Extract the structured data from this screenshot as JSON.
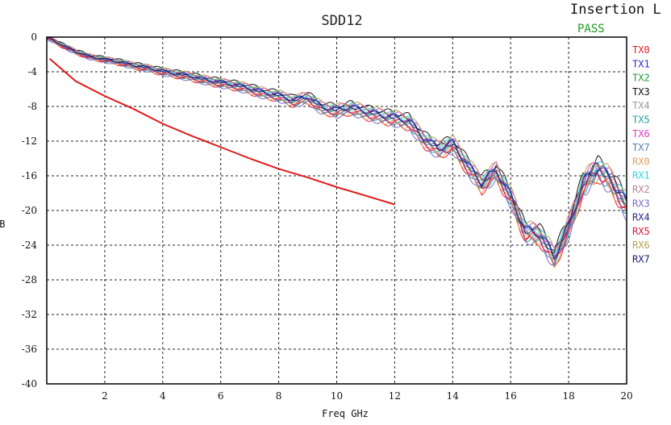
{
  "chart_data": {
    "type": "line",
    "title": "SDD12",
    "banner": "Insertion L",
    "status": "PASS",
    "xlabel": "Freq GHz",
    "ylabel": "dB",
    "xlim": [
      0,
      20
    ],
    "ylim": [
      -40,
      0
    ],
    "xticks": [
      2,
      4,
      6,
      8,
      10,
      12,
      14,
      16,
      18,
      20
    ],
    "yticks": [
      0,
      -4,
      -8,
      -12,
      -16,
      -20,
      -24,
      -28,
      -32,
      -36,
      -40
    ],
    "grid": true,
    "legend_position": "right",
    "limit_line": {
      "color": "#e01b1b",
      "x": [
        0.1,
        1,
        2,
        3,
        4,
        5,
        6,
        7,
        8,
        9,
        10,
        11,
        12
      ],
      "y": [
        -2.5,
        -5.1,
        -6.8,
        -8.3,
        -10.0,
        -11.4,
        -12.7,
        -14.0,
        -15.2,
        -16.2,
        -17.3,
        -18.3,
        -19.3
      ]
    },
    "series_base": {
      "x": [
        0,
        0.5,
        1,
        1.5,
        2,
        2.5,
        3,
        3.5,
        4,
        4.5,
        5,
        5.5,
        6,
        6.5,
        7,
        7.5,
        8,
        8.5,
        9,
        9.5,
        10,
        10.5,
        11,
        11.5,
        12,
        12.5,
        13,
        13.5,
        14,
        14.5,
        15,
        15.5,
        16,
        16.5,
        17,
        17.5,
        18,
        18.5,
        19,
        19.5,
        20
      ],
      "y": [
        0,
        -0.9,
        -1.7,
        -2.3,
        -2.6,
        -2.9,
        -3.3,
        -3.6,
        -4.0,
        -4.3,
        -4.6,
        -5.0,
        -5.3,
        -5.6,
        -6.0,
        -6.5,
        -6.8,
        -7.4,
        -7.0,
        -8.2,
        -8.5,
        -8.2,
        -8.7,
        -9.1,
        -9.4,
        -9.8,
        -11.8,
        -13.0,
        -12.4,
        -14.8,
        -17.0,
        -15.5,
        -18.5,
        -22.5,
        -22.8,
        -25.5,
        -22.0,
        -17.0,
        -15.2,
        -16.8,
        -19.5
      ]
    },
    "series": [
      {
        "name": "TX0",
        "color": "#e8202a"
      },
      {
        "name": "TX1",
        "color": "#2b2bd6"
      },
      {
        "name": "TX2",
        "color": "#1f9a3a"
      },
      {
        "name": "TX3",
        "color": "#111111"
      },
      {
        "name": "TX4",
        "color": "#9a9a9a"
      },
      {
        "name": "TX5",
        "color": "#1aa3a3"
      },
      {
        "name": "TX6",
        "color": "#e040c0"
      },
      {
        "name": "TX7",
        "color": "#5a7fa8"
      },
      {
        "name": "RX0",
        "color": "#e0a060"
      },
      {
        "name": "RX1",
        "color": "#2ad6e6"
      },
      {
        "name": "RX2",
        "color": "#c080a0"
      },
      {
        "name": "RX3",
        "color": "#7a6ad0"
      },
      {
        "name": "RX4",
        "color": "#2a2a8a"
      },
      {
        "name": "RX5",
        "color": "#e01840"
      },
      {
        "name": "RX6",
        "color": "#c0a050"
      },
      {
        "name": "RX7",
        "color": "#1a1a7a"
      }
    ]
  }
}
